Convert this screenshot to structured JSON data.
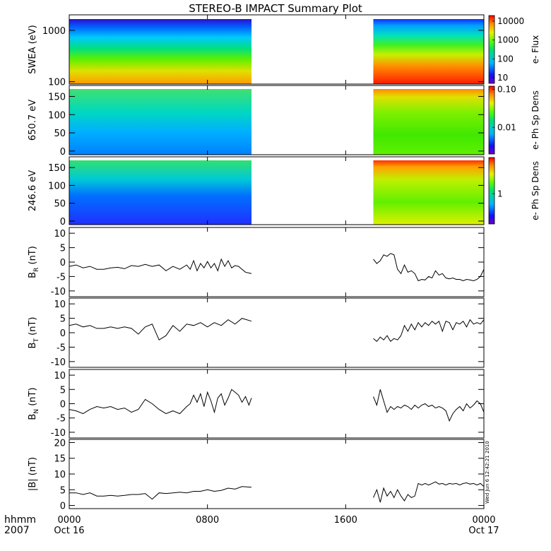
{
  "title": "STEREO-B IMPACT Summary Plot",
  "footer": {
    "time_label": "hhmm",
    "year": "2007"
  },
  "timestamp": "Wed Jun  6 12:42:21 2010",
  "x_axis": {
    "range_hours": [
      0,
      24
    ],
    "ticks": [
      {
        "hour": 0,
        "time": "0000",
        "date": "Oct 16"
      },
      {
        "hour": 8,
        "time": "0800",
        "date": ""
      },
      {
        "hour": 16,
        "time": "1600",
        "date": ""
      },
      {
        "hour": 24,
        "time": "0000",
        "date": "Oct 17"
      }
    ],
    "data_gap_hours": [
      10.55,
      17.6
    ]
  },
  "chart_data": [
    {
      "type": "heatmap",
      "ylabel": "SWEA (eV)",
      "yscale": "log",
      "ylim": [
        90,
        2000
      ],
      "yticks": [
        {
          "value": 100,
          "label": "100"
        },
        {
          "value": 1000,
          "label": "1000"
        }
      ],
      "colorbar": {
        "label": "e- Flux",
        "scale": "log",
        "range": [
          5,
          20000
        ],
        "ticks": [
          {
            "value": 10,
            "label": "10"
          },
          {
            "value": 100,
            "label": "100"
          },
          {
            "value": 1000,
            "label": "1000"
          },
          {
            "value": 10000,
            "label": "10000"
          }
        ]
      },
      "description_levels": "flux decreases with energy; ~20000 near 100 eV, ~10 near 1500 eV"
    },
    {
      "type": "heatmap",
      "ylabel": "650.7 eV",
      "ylim": [
        -10,
        180
      ],
      "yticks": [
        {
          "value": 0,
          "label": "0"
        },
        {
          "value": 50,
          "label": "50"
        },
        {
          "value": 100,
          "label": "100"
        },
        {
          "value": 150,
          "label": "150"
        }
      ],
      "colorbar": {
        "label": "e- Ph Sp Dens",
        "scale": "log",
        "range": [
          0.002,
          0.12
        ],
        "ticks": [
          {
            "value": 0.01,
            "label": "0.01"
          },
          {
            "value": 0.1,
            "label": "0.10"
          }
        ]
      }
    },
    {
      "type": "heatmap",
      "ylabel": "246.6 eV",
      "ylim": [
        -10,
        180
      ],
      "yticks": [
        {
          "value": 0,
          "label": "0"
        },
        {
          "value": 50,
          "label": "50"
        },
        {
          "value": 100,
          "label": "100"
        },
        {
          "value": 150,
          "label": "150"
        }
      ],
      "colorbar": {
        "label": "e- Ph Sp Dens",
        "scale": "log",
        "range": [
          0.4,
          3
        ],
        "ticks": [
          {
            "value": 1,
            "label": "1"
          }
        ]
      }
    },
    {
      "type": "line",
      "ylabel": "B_R (nT)",
      "ylabel_main": "B",
      "ylabel_sub": "R",
      "ylabel_unit": "(nT)",
      "ylim": [
        -12,
        12
      ],
      "yticks": [
        {
          "value": -10,
          "label": "-10"
        },
        {
          "value": -5,
          "label": "-5"
        },
        {
          "value": 0,
          "label": "0"
        },
        {
          "value": 5,
          "label": "5"
        },
        {
          "value": 10,
          "label": "10"
        }
      ],
      "segments": [
        {
          "x": [
            0,
            0.4,
            0.8,
            1.2,
            1.6,
            2.0,
            2.4,
            2.8,
            3.2,
            3.6,
            4.0,
            4.4,
            4.8,
            5.2,
            5.6,
            6.0,
            6.4,
            6.8,
            7.0,
            7.2,
            7.4,
            7.6,
            7.8,
            8.0,
            8.2,
            8.4,
            8.6,
            8.8,
            9.0,
            9.2,
            9.4,
            9.6,
            9.8,
            10.0,
            10.2,
            10.4,
            10.55
          ],
          "y": [
            -1.5,
            -1.0,
            -2.0,
            -1.5,
            -2.5,
            -2.5,
            -2.0,
            -1.8,
            -2.3,
            -1.2,
            -1.5,
            -0.8,
            -1.5,
            -1.0,
            -3.0,
            -1.5,
            -2.5,
            -1.0,
            -2.5,
            0.5,
            -3.0,
            -0.5,
            -2.0,
            0.2,
            -2.0,
            -0.5,
            -3.0,
            1.0,
            -1.5,
            0.5,
            -2.0,
            -1.2,
            -1.5,
            -2.5,
            -3.5,
            -3.8,
            -4.0
          ]
        },
        {
          "x": [
            17.6,
            17.8,
            18.0,
            18.2,
            18.4,
            18.6,
            18.8,
            19.0,
            19.2,
            19.4,
            19.6,
            19.8,
            20.0,
            20.2,
            20.4,
            20.6,
            20.8,
            21.0,
            21.2,
            21.4,
            21.6,
            21.8,
            22.0,
            22.2,
            22.4,
            22.6,
            22.8,
            23.0,
            23.2,
            23.4,
            23.6,
            23.8,
            24.0
          ],
          "y": [
            1.0,
            -0.5,
            0.5,
            2.5,
            2.0,
            3.0,
            2.5,
            -2.5,
            -4.0,
            -1.0,
            -3.5,
            -3.0,
            -4.0,
            -6.5,
            -6.0,
            -6.2,
            -5.0,
            -5.5,
            -3.0,
            -4.5,
            -4.0,
            -5.5,
            -5.8,
            -5.5,
            -6.0,
            -6.0,
            -6.5,
            -6.0,
            -6.2,
            -6.5,
            -6.0,
            -5.0,
            -2.5
          ]
        }
      ]
    },
    {
      "type": "line",
      "ylabel": "B_T (nT)",
      "ylabel_main": "B",
      "ylabel_sub": "T",
      "ylabel_unit": "(nT)",
      "ylim": [
        -12,
        12
      ],
      "yticks": [
        {
          "value": -10,
          "label": "-10"
        },
        {
          "value": -5,
          "label": "-5"
        },
        {
          "value": 0,
          "label": "0"
        },
        {
          "value": 5,
          "label": "5"
        },
        {
          "value": 10,
          "label": "10"
        }
      ],
      "segments": [
        {
          "x": [
            0,
            0.4,
            0.8,
            1.2,
            1.6,
            2.0,
            2.4,
            2.8,
            3.2,
            3.6,
            4.0,
            4.4,
            4.8,
            5.2,
            5.6,
            6.0,
            6.4,
            6.8,
            7.2,
            7.6,
            8.0,
            8.4,
            8.8,
            9.2,
            9.6,
            10.0,
            10.55
          ],
          "y": [
            2.5,
            3.0,
            2.0,
            2.5,
            1.5,
            1.5,
            2.0,
            1.5,
            2.0,
            1.5,
            -0.5,
            2.0,
            3.0,
            -2.5,
            -1.0,
            2.5,
            0.5,
            3.0,
            2.5,
            3.5,
            2.0,
            3.5,
            2.5,
            4.5,
            3.0,
            5.0,
            4.0
          ]
        },
        {
          "x": [
            17.6,
            17.8,
            18.0,
            18.2,
            18.4,
            18.6,
            18.8,
            19.0,
            19.2,
            19.4,
            19.6,
            19.8,
            20.0,
            20.2,
            20.4,
            20.6,
            20.8,
            21.0,
            21.2,
            21.4,
            21.6,
            21.8,
            22.0,
            22.2,
            22.4,
            22.6,
            22.8,
            23.0,
            23.2,
            23.4,
            23.6,
            23.8,
            24.0
          ],
          "y": [
            -2.0,
            -3.0,
            -1.5,
            -2.5,
            -1.0,
            -3.0,
            -2.0,
            -2.5,
            -1.0,
            2.5,
            0.5,
            3.0,
            1.0,
            3.5,
            2.0,
            3.5,
            2.5,
            4.0,
            3.0,
            4.0,
            0.5,
            4.0,
            3.5,
            1.0,
            3.5,
            3.0,
            4.0,
            2.0,
            4.5,
            3.0,
            3.5,
            3.0,
            4.5
          ]
        }
      ]
    },
    {
      "type": "line",
      "ylabel": "B_N (nT)",
      "ylabel_main": "B",
      "ylabel_sub": "N",
      "ylabel_unit": "(nT)",
      "ylim": [
        -12,
        12
      ],
      "yticks": [
        {
          "value": -10,
          "label": "-10"
        },
        {
          "value": -5,
          "label": "-5"
        },
        {
          "value": 0,
          "label": "0"
        },
        {
          "value": 5,
          "label": "5"
        },
        {
          "value": 10,
          "label": "10"
        }
      ],
      "segments": [
        {
          "x": [
            0,
            0.4,
            0.8,
            1.2,
            1.6,
            2.0,
            2.4,
            2.8,
            3.2,
            3.6,
            4.0,
            4.4,
            4.8,
            5.2,
            5.6,
            6.0,
            6.4,
            6.8,
            7.0,
            7.2,
            7.4,
            7.6,
            7.8,
            8.0,
            8.2,
            8.4,
            8.6,
            8.8,
            9.0,
            9.2,
            9.4,
            9.6,
            9.8,
            10.0,
            10.2,
            10.4,
            10.55
          ],
          "y": [
            -2.0,
            -2.5,
            -3.5,
            -2.0,
            -1.0,
            -1.5,
            -1.0,
            -2.0,
            -1.5,
            -3.0,
            -2.0,
            1.5,
            0.0,
            -2.0,
            -3.5,
            -2.5,
            -3.5,
            -1.0,
            0.0,
            3.0,
            0.5,
            3.5,
            -1.0,
            4.0,
            1.0,
            -3.0,
            2.0,
            3.5,
            -0.5,
            2.0,
            5.0,
            4.0,
            3.0,
            0.5,
            2.5,
            -0.5,
            2.0
          ]
        },
        {
          "x": [
            17.6,
            17.8,
            18.0,
            18.2,
            18.4,
            18.6,
            18.8,
            19.0,
            19.2,
            19.4,
            19.6,
            19.8,
            20.0,
            20.2,
            20.4,
            20.6,
            20.8,
            21.0,
            21.2,
            21.4,
            21.6,
            21.8,
            22.0,
            22.2,
            22.4,
            22.6,
            22.8,
            23.0,
            23.2,
            23.4,
            23.6,
            23.8,
            24.0
          ],
          "y": [
            2.5,
            -0.5,
            5.0,
            1.0,
            -3.0,
            -1.0,
            -2.0,
            -1.0,
            -1.5,
            -0.5,
            -1.0,
            -2.0,
            -0.5,
            -1.5,
            -0.5,
            0.0,
            -1.0,
            -0.5,
            -1.5,
            -1.0,
            -1.5,
            -2.5,
            -6.0,
            -3.5,
            -2.0,
            -1.0,
            -2.5,
            0.0,
            -1.5,
            -0.5,
            1.0,
            0.0,
            -3.0
          ]
        }
      ]
    },
    {
      "type": "line",
      "ylabel": "|B| (nT)",
      "ylim": [
        -1,
        21
      ],
      "yticks": [
        {
          "value": 0,
          "label": "0"
        },
        {
          "value": 5,
          "label": "5"
        },
        {
          "value": 10,
          "label": "10"
        },
        {
          "value": 15,
          "label": "15"
        },
        {
          "value": 20,
          "label": "20"
        }
      ],
      "segments": [
        {
          "x": [
            0,
            0.4,
            0.8,
            1.2,
            1.6,
            2.0,
            2.4,
            2.8,
            3.2,
            3.6,
            4.0,
            4.4,
            4.8,
            5.2,
            5.6,
            6.0,
            6.4,
            6.8,
            7.2,
            7.6,
            8.0,
            8.4,
            8.8,
            9.2,
            9.6,
            10.0,
            10.55
          ],
          "y": [
            4.0,
            4.0,
            3.5,
            4.0,
            3.0,
            3.0,
            3.2,
            3.0,
            3.2,
            3.5,
            3.5,
            3.8,
            2.0,
            4.0,
            3.8,
            4.0,
            4.2,
            4.0,
            4.5,
            4.5,
            5.0,
            4.5,
            4.8,
            5.5,
            5.2,
            6.0,
            5.8
          ]
        },
        {
          "x": [
            17.6,
            17.8,
            18.0,
            18.2,
            18.4,
            18.6,
            18.8,
            19.0,
            19.2,
            19.4,
            19.6,
            19.8,
            20.0,
            20.2,
            20.4,
            20.6,
            20.8,
            21.0,
            21.2,
            21.4,
            21.6,
            21.8,
            22.0,
            22.2,
            22.4,
            22.6,
            22.8,
            23.0,
            23.2,
            23.4,
            23.6,
            23.8,
            24.0
          ],
          "y": [
            2.5,
            5.0,
            1.0,
            5.5,
            3.0,
            4.5,
            2.5,
            5.0,
            3.0,
            1.5,
            3.5,
            2.5,
            3.0,
            7.0,
            6.5,
            7.0,
            6.5,
            7.0,
            7.5,
            6.8,
            7.0,
            6.5,
            7.0,
            6.8,
            7.0,
            6.5,
            7.0,
            7.2,
            6.8,
            7.0,
            6.5,
            7.0,
            6.0
          ]
        }
      ]
    }
  ]
}
